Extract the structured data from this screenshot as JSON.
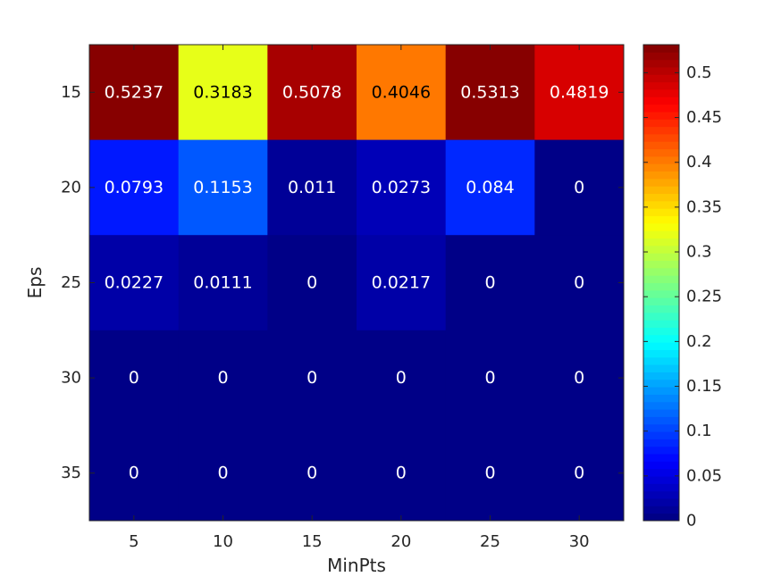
{
  "chart_data": {
    "type": "heatmap",
    "title": "",
    "xlabel": "MinPts",
    "ylabel": "Eps",
    "x": [
      5,
      10,
      15,
      20,
      25,
      30
    ],
    "y": [
      15,
      20,
      25,
      30,
      35
    ],
    "x_tick_labels": [
      "5",
      "10",
      "15",
      "20",
      "25",
      "30"
    ],
    "y_tick_labels": [
      "15",
      "20",
      "25",
      "30",
      "35"
    ],
    "values": [
      [
        0.5237,
        0.3183,
        0.5078,
        0.4046,
        0.5313,
        0.4819
      ],
      [
        0.0793,
        0.1153,
        0.011,
        0.0273,
        0.084,
        0
      ],
      [
        0.0227,
        0.0111,
        0,
        0.0217,
        0,
        0
      ],
      [
        0,
        0,
        0,
        0,
        0,
        0
      ],
      [
        0,
        0,
        0,
        0,
        0,
        0
      ]
    ],
    "cell_labels": [
      [
        "0.5237",
        "0.3183",
        "0.5078",
        "0.4046",
        "0.5313",
        "0.4819"
      ],
      [
        "0.0793",
        "0.1153",
        "0.011",
        "0.0273",
        "0.084",
        "0"
      ],
      [
        "0.0227",
        "0.0111",
        "0",
        "0.0217",
        "0",
        "0"
      ],
      [
        "0",
        "0",
        "0",
        "0",
        "0",
        "0"
      ],
      [
        "0",
        "0",
        "0",
        "0",
        "0",
        "0"
      ]
    ],
    "colormap": "jet",
    "clim": [
      0,
      0.5313
    ],
    "colorbar": {
      "position": "right",
      "ticks": [
        0,
        0.05,
        0.1,
        0.15,
        0.2,
        0.25,
        0.3,
        0.35,
        0.4,
        0.45,
        0.5
      ],
      "tick_labels": [
        "0",
        "0.05",
        "0.1",
        "0.15",
        "0.2",
        "0.25",
        "0.3",
        "0.35",
        "0.4",
        "0.45",
        "0.5"
      ]
    },
    "grid": false
  }
}
